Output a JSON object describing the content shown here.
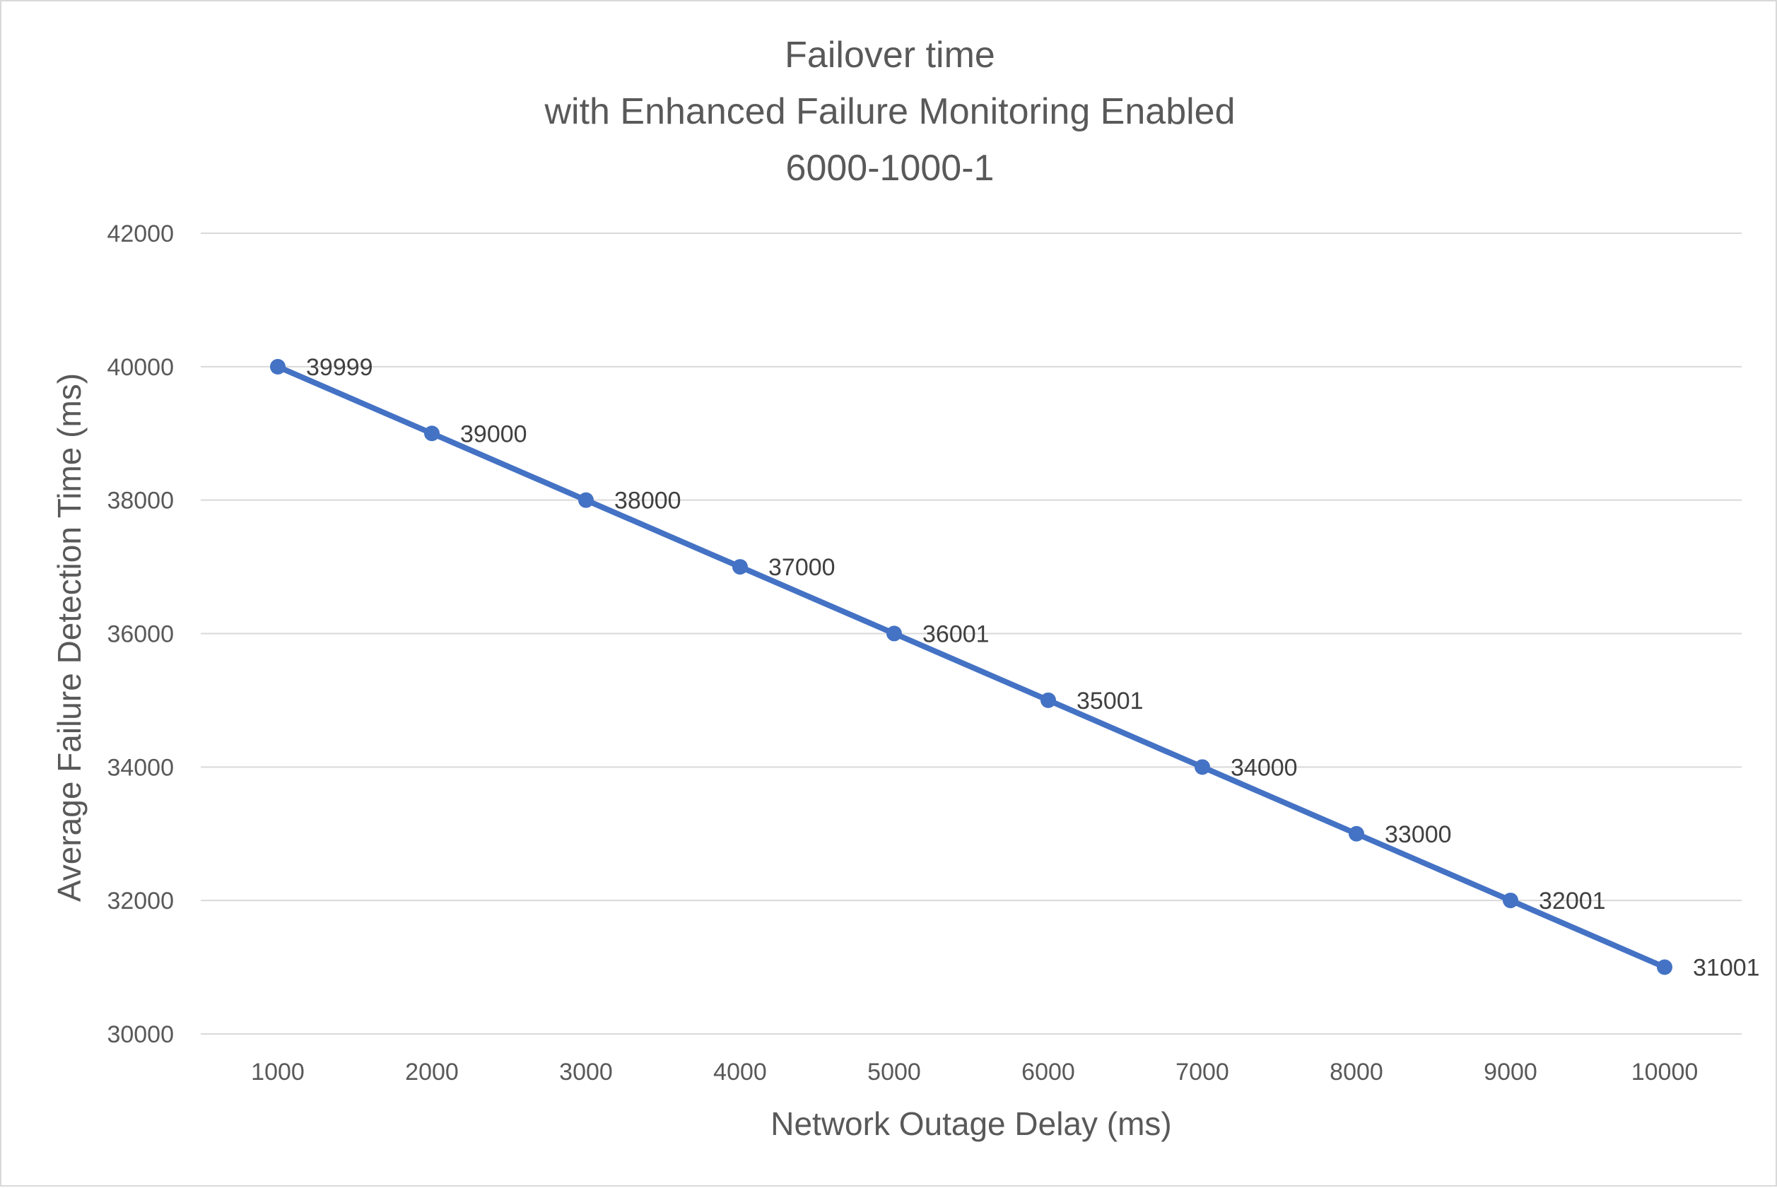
{
  "chart_data": {
    "type": "line",
    "title_lines": [
      "Failover time",
      "with Enhanced Failure Monitoring Enabled",
      "6000-1000-1"
    ],
    "xlabel": "Network Outage Delay (ms)",
    "ylabel": "Average Failure Detection Time (ms)",
    "categories": [
      "1000",
      "2000",
      "3000",
      "4000",
      "5000",
      "6000",
      "7000",
      "8000",
      "9000",
      "10000"
    ],
    "series": [
      {
        "values": [
          39999,
          39000,
          38000,
          37000,
          36001,
          35001,
          34000,
          33000,
          32001,
          31001
        ],
        "color": "#4472c4"
      }
    ],
    "data_labels": [
      "39999",
      "39000",
      "38000",
      "37000",
      "36001",
      "35001",
      "34000",
      "33000",
      "32001",
      "31001"
    ],
    "ylim": [
      30000,
      42000
    ],
    "yticks": [
      30000,
      32000,
      34000,
      36000,
      38000,
      40000,
      42000
    ],
    "ytick_labels": [
      "30000",
      "32000",
      "34000",
      "36000",
      "38000",
      "40000",
      "42000"
    ],
    "grid": true,
    "legend": "none"
  }
}
